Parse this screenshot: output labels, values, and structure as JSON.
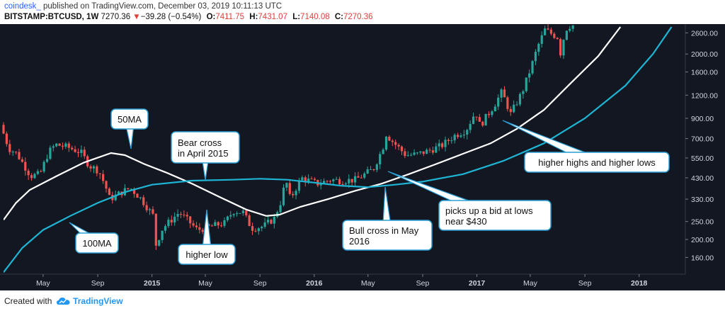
{
  "header": {
    "publisher": "coindesk_",
    "published_text": " published on TradingView.com, December 03, 2019 10:11:13 UTC",
    "symbol": "BITSTAMP:BTCUSD, 1W",
    "price": "7270.36",
    "change_arrow": "▼",
    "change": "−39.28 (−0.54%)",
    "o_label": "O:",
    "o_value": "7411.75",
    "h_label": "H:",
    "h_value": "7431.07",
    "l_label": "L:",
    "l_value": "7140.08",
    "c_label": "C:",
    "c_value": "7270.36"
  },
  "footer": {
    "created_with": "Created with",
    "brand": "TradingView"
  },
  "colors": {
    "background": "#131722",
    "up": "#26a69a",
    "down": "#ef5350",
    "ma50": "#ffffff",
    "ma100": "#1eb5d4",
    "axis_text": "#d1d4dc"
  },
  "chart_data": {
    "type": "candlestick",
    "title": "",
    "y_scale": "log",
    "ylim": [
      130,
      2900
    ],
    "y_ticks": [
      160,
      200,
      250,
      330,
      430,
      550,
      700,
      900,
      1200,
      1600,
      2000,
      2600
    ],
    "y_tick_labels": [
      "160.00",
      "200.00",
      "250.00",
      "330.00",
      "430.00",
      "550.00",
      "700.00",
      "900.00",
      "1200.00",
      "1600.00",
      "2000.00",
      "2600.00"
    ],
    "x_range": [
      "2014-02-01",
      "2018-04-15"
    ],
    "x_ticks": [
      {
        "date": "2014-05-01",
        "label": "May"
      },
      {
        "date": "2014-09-01",
        "label": "Sep"
      },
      {
        "date": "2015-01-01",
        "label": "2015"
      },
      {
        "date": "2015-05-01",
        "label": "May"
      },
      {
        "date": "2015-09-01",
        "label": "Sep"
      },
      {
        "date": "2016-01-01",
        "label": "2016"
      },
      {
        "date": "2016-05-01",
        "label": "May"
      },
      {
        "date": "2016-09-01",
        "label": "Sep"
      },
      {
        "date": "2017-01-01",
        "label": "2017"
      },
      {
        "date": "2017-05-01",
        "label": "May"
      },
      {
        "date": "2017-09-01",
        "label": "Sep"
      },
      {
        "date": "2018-01-01",
        "label": "2018"
      }
    ],
    "price_path": [
      [
        "2014-02-01",
        830
      ],
      [
        "2014-02-20",
        620
      ],
      [
        "2014-03-10",
        580
      ],
      [
        "2014-04-10",
        440
      ],
      [
        "2014-05-01",
        450
      ],
      [
        "2014-05-20",
        590
      ],
      [
        "2014-06-05",
        650
      ],
      [
        "2014-07-01",
        630
      ],
      [
        "2014-08-01",
        590
      ],
      [
        "2014-08-20",
        500
      ],
      [
        "2014-09-10",
        470
      ],
      [
        "2014-09-25",
        390
      ],
      [
        "2014-10-05",
        330
      ],
      [
        "2014-11-01",
        360
      ],
      [
        "2014-11-20",
        380
      ],
      [
        "2014-12-15",
        330
      ],
      [
        "2015-01-10",
        270
      ],
      [
        "2015-01-14",
        180
      ],
      [
        "2015-02-01",
        230
      ],
      [
        "2015-03-10",
        280
      ],
      [
        "2015-04-01",
        250
      ],
      [
        "2015-04-20",
        225
      ],
      [
        "2015-05-20",
        235
      ],
      [
        "2015-06-20",
        245
      ],
      [
        "2015-07-10",
        285
      ],
      [
        "2015-08-01",
        280
      ],
      [
        "2015-08-20",
        230
      ],
      [
        "2015-09-15",
        235
      ],
      [
        "2015-10-10",
        260
      ],
      [
        "2015-10-25",
        320
      ],
      [
        "2015-11-05",
        420
      ],
      [
        "2015-11-15",
        330
      ],
      [
        "2015-12-10",
        430
      ],
      [
        "2016-01-15",
        400
      ],
      [
        "2016-02-15",
        420
      ],
      [
        "2016-03-10",
        415
      ],
      [
        "2016-04-10",
        420
      ],
      [
        "2016-05-01",
        450
      ],
      [
        "2016-05-20",
        480
      ],
      [
        "2016-06-10",
        620
      ],
      [
        "2016-06-18",
        740
      ],
      [
        "2016-07-01",
        680
      ],
      [
        "2016-08-01",
        570
      ],
      [
        "2016-08-25",
        575
      ],
      [
        "2016-09-20",
        600
      ],
      [
        "2016-10-20",
        640
      ],
      [
        "2016-11-20",
        730
      ],
      [
        "2016-12-15",
        780
      ],
      [
        "2017-01-05",
        980
      ],
      [
        "2017-01-15",
        820
      ],
      [
        "2017-02-15",
        1050
      ],
      [
        "2017-03-05",
        1250
      ],
      [
        "2017-03-25",
        950
      ],
      [
        "2017-04-20",
        1250
      ],
      [
        "2017-05-10",
        1700
      ],
      [
        "2017-05-25",
        2200
      ],
      [
        "2017-06-10",
        2700
      ],
      [
        "2017-07-10",
        2450
      ],
      [
        "2017-07-16",
        1950
      ],
      [
        "2017-07-25",
        2700
      ],
      [
        "2017-08-06",
        2850
      ]
    ],
    "series": [
      {
        "name": "50MA",
        "points": [
          [
            "2014-02-01",
            255
          ],
          [
            "2014-03-01",
            315
          ],
          [
            "2014-04-01",
            370
          ],
          [
            "2014-06-01",
            440
          ],
          [
            "2014-08-01",
            520
          ],
          [
            "2014-10-01",
            585
          ],
          [
            "2014-11-01",
            570
          ],
          [
            "2014-12-15",
            510
          ],
          [
            "2015-02-01",
            460
          ],
          [
            "2015-04-01",
            400
          ],
          [
            "2015-06-01",
            340
          ],
          [
            "2015-08-01",
            290
          ],
          [
            "2015-09-15",
            268
          ],
          [
            "2015-10-15",
            272
          ],
          [
            "2015-12-01",
            300
          ],
          [
            "2016-02-01",
            330
          ],
          [
            "2016-04-01",
            365
          ],
          [
            "2016-06-01",
            400
          ],
          [
            "2016-08-01",
            450
          ],
          [
            "2016-10-01",
            510
          ],
          [
            "2016-12-01",
            580
          ],
          [
            "2017-02-01",
            660
          ],
          [
            "2017-04-01",
            790
          ],
          [
            "2017-06-01",
            1000
          ],
          [
            "2017-08-01",
            1400
          ],
          [
            "2017-10-01",
            1950
          ],
          [
            "2017-11-20",
            2800
          ]
        ]
      },
      {
        "name": "100MA",
        "points": [
          [
            "2014-02-01",
            133
          ],
          [
            "2014-03-15",
            180
          ],
          [
            "2014-05-01",
            225
          ],
          [
            "2014-07-01",
            268
          ],
          [
            "2014-09-01",
            315
          ],
          [
            "2014-11-01",
            360
          ],
          [
            "2015-01-01",
            395
          ],
          [
            "2015-04-01",
            415
          ],
          [
            "2015-07-01",
            420
          ],
          [
            "2015-09-01",
            425
          ],
          [
            "2015-11-01",
            420
          ],
          [
            "2016-01-01",
            405
          ],
          [
            "2016-03-01",
            390
          ],
          [
            "2016-05-01",
            383
          ],
          [
            "2016-07-01",
            395
          ],
          [
            "2016-09-01",
            410
          ],
          [
            "2016-12-01",
            450
          ],
          [
            "2017-03-01",
            530
          ],
          [
            "2017-06-01",
            660
          ],
          [
            "2017-09-01",
            900
          ],
          [
            "2017-12-01",
            1350
          ],
          [
            "2018-02-01",
            2000
          ],
          [
            "2018-03-15",
            2800
          ]
        ]
      }
    ],
    "annotations": [
      {
        "text": "50MA"
      },
      {
        "text": "Bear cross\nin April 2015"
      },
      {
        "text": "100MA"
      },
      {
        "text": "higher low"
      },
      {
        "text": "Bull cross in May\n2016"
      },
      {
        "text": "picks up a bid at lows\nnear $430"
      },
      {
        "text": "higher highs and higher lows"
      }
    ],
    "grid": false,
    "legend": "none"
  }
}
